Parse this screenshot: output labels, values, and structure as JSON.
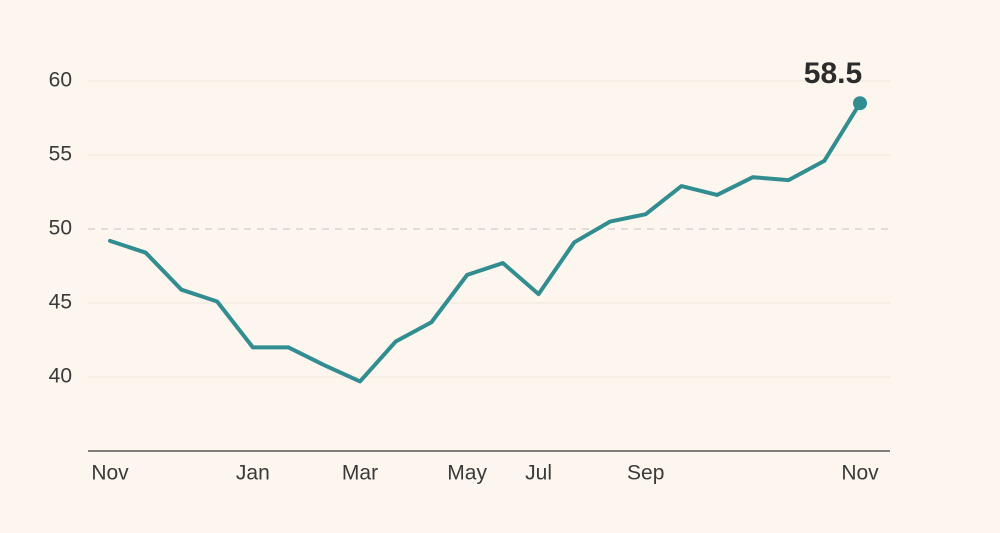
{
  "chart_data": {
    "type": "line",
    "categories": [
      "Nov",
      null,
      null,
      null,
      "Jan",
      null,
      null,
      "Mar",
      null,
      null,
      "May",
      null,
      "Jul",
      null,
      null,
      "Sep",
      null,
      null,
      null,
      null,
      null,
      "Nov"
    ],
    "values": [
      49.2,
      48.4,
      45.9,
      45.1,
      42.0,
      42.0,
      40.8,
      39.7,
      42.4,
      43.7,
      46.9,
      47.7,
      45.6,
      49.1,
      50.5,
      51.0,
      52.9,
      52.3,
      53.5,
      53.3,
      54.6,
      58.5
    ],
    "color": "#328d91",
    "ylim": [
      35,
      60
    ],
    "yticks": [
      40,
      45,
      50,
      55,
      60
    ],
    "grid": true,
    "reference_line": 50
  }
}
